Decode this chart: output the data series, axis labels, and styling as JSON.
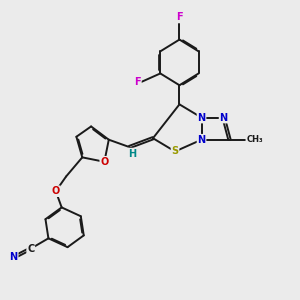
{
  "bg_color": "#ebebeb",
  "bond_color": "#1a1a1a",
  "bond_width": 1.4,
  "dbo": 0.04,
  "atom_colors": {
    "C": "#1a1a1a",
    "N": "#0000cc",
    "S": "#999900",
    "O": "#cc0000",
    "F": "#cc00cc",
    "H": "#008888"
  },
  "fs": 7.0,
  "fs_small": 6.0
}
